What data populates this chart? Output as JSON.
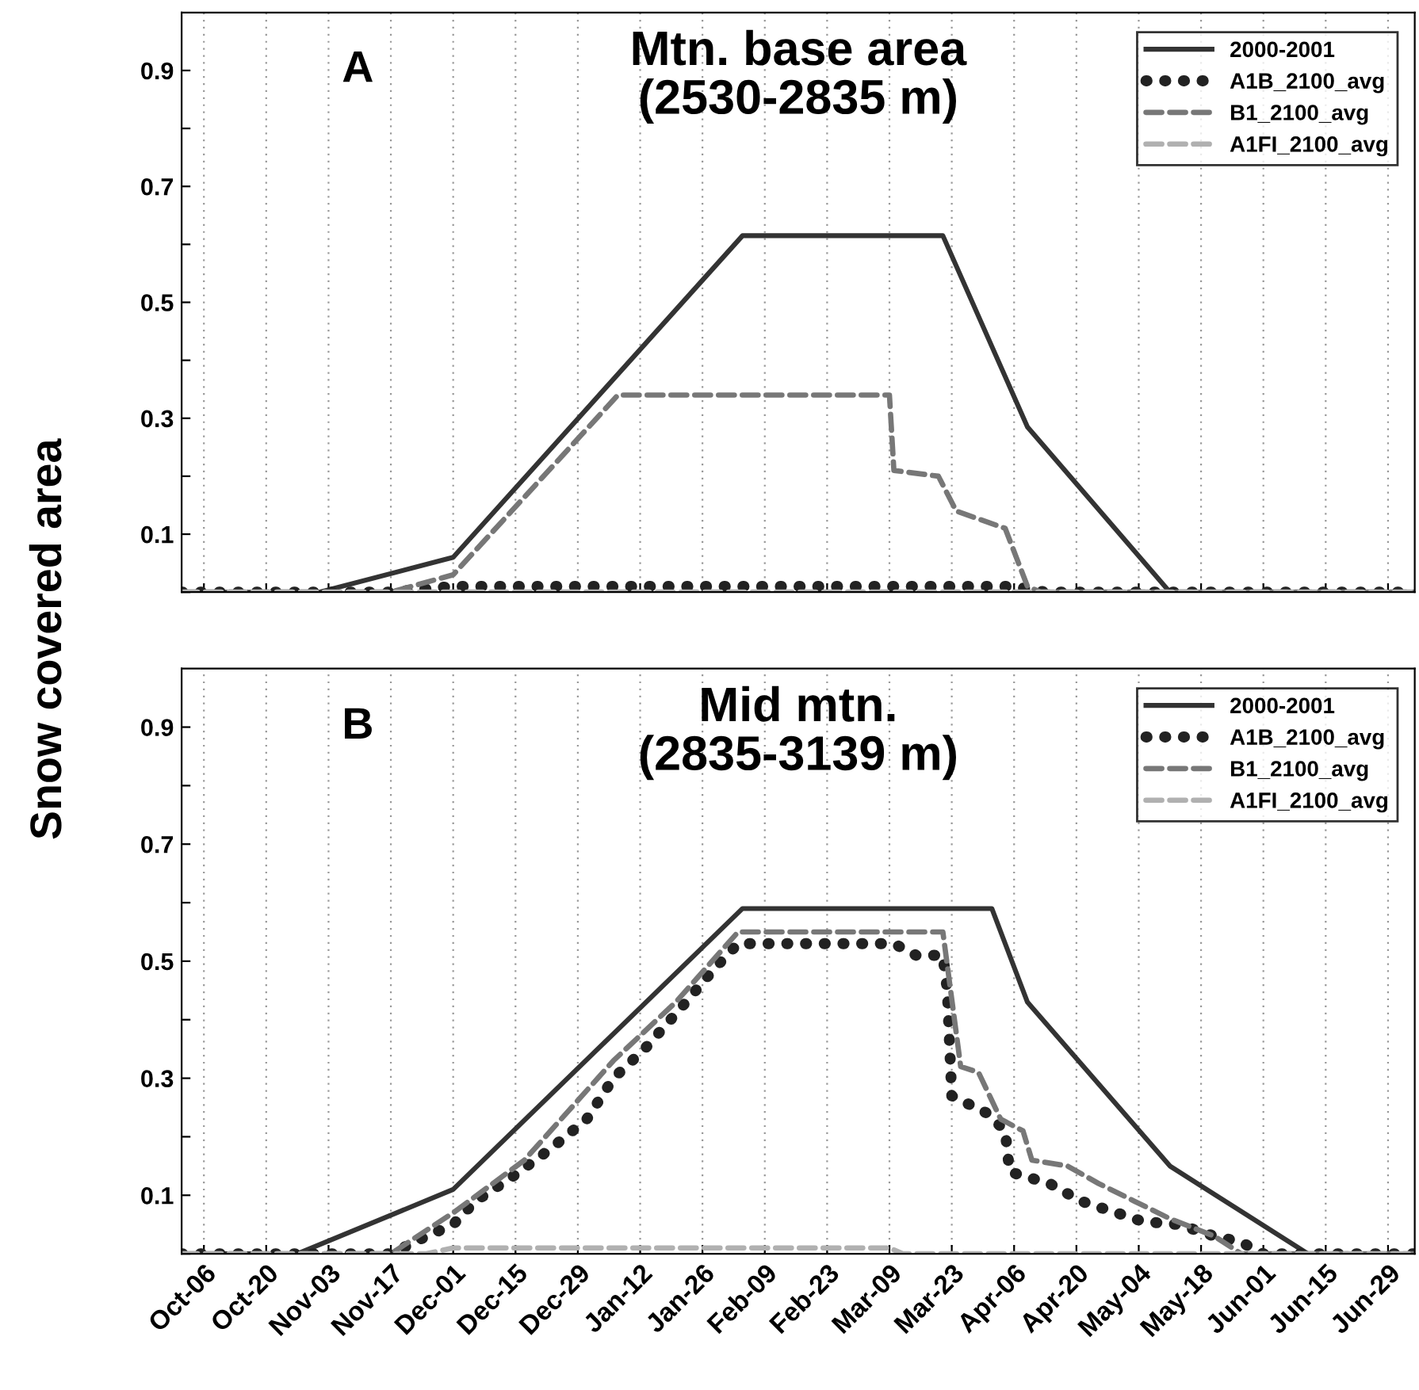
{
  "chart_data": [
    {
      "type": "line",
      "title": "Mtn. base area\n(2530-2835 m)",
      "ylabel": "Snow covered area",
      "annotations": [
        "A"
      ],
      "grid": "x",
      "legend": "top right",
      "tick_labels": "y",
      "xlim": [
        "2000-10-01",
        "2001-07-05"
      ],
      "xticks": [
        {
          "value": "2000-10-06",
          "label": null
        },
        {
          "value": "2000-10-20",
          "label": null
        },
        {
          "value": "2000-11-03",
          "label": null
        },
        {
          "value": "2000-11-17",
          "label": null
        },
        {
          "value": "2000-12-01",
          "label": null
        },
        {
          "value": "2000-12-15",
          "label": null
        },
        {
          "value": "2000-12-29",
          "label": null
        },
        {
          "value": "2001-01-12",
          "label": null
        },
        {
          "value": "2001-01-26",
          "label": null
        },
        {
          "value": "2001-02-09",
          "label": null
        },
        {
          "value": "2001-02-23",
          "label": null
        },
        {
          "value": "2001-03-09",
          "label": null
        },
        {
          "value": "2001-03-23",
          "label": null
        },
        {
          "value": "2001-04-06",
          "label": null
        },
        {
          "value": "2001-04-20",
          "label": null
        },
        {
          "value": "2001-05-04",
          "label": null
        },
        {
          "value": "2001-05-18",
          "label": null
        },
        {
          "value": "2001-06-01",
          "label": null
        },
        {
          "value": "2001-06-15",
          "label": null
        },
        {
          "value": "2001-06-29",
          "label": null
        }
      ],
      "ylim": [
        0,
        1
      ],
      "yticks": [
        {
          "value": 0,
          "label": null
        },
        0.1,
        {
          "value": 0.2,
          "label": null
        },
        0.3,
        {
          "value": 0.4,
          "label": null
        },
        0.5,
        {
          "value": 0.6,
          "label": null
        },
        0.7,
        {
          "value": 0.8,
          "label": null
        },
        0.9
      ],
      "series": [
        {
          "name": "2000-2001",
          "color": "#333333",
          "line_style": "solid",
          "x": [
            "2000-10-01",
            "2000-11-01",
            "2000-12-01",
            "2001-02-04",
            "2001-03-21",
            "2001-04-09",
            "2001-05-11",
            "2001-07-05"
          ],
          "values": [
            0,
            0,
            0.06,
            0.615,
            0.615,
            0.285,
            0,
            0
          ]
        },
        {
          "name": "A1B_2100_avg",
          "color": "#222222",
          "line_style": "dotted",
          "x": [
            "2000-10-01",
            "2000-11-17",
            "2000-12-01",
            "2001-04-06",
            "2001-04-13",
            "2001-07-05"
          ],
          "values": [
            0,
            0,
            0.01,
            0.01,
            0,
            0
          ]
        },
        {
          "name": "B1_2100_avg",
          "color": "#777777",
          "line_style": "dashed",
          "x": [
            "2000-10-01",
            "2000-11-17",
            "2000-12-01",
            "2001-01-07",
            "2001-03-09",
            "2001-03-10",
            "2001-03-20",
            "2001-03-24",
            "2001-04-04",
            "2001-04-07",
            "2001-04-09",
            "2001-04-12",
            "2001-07-05"
          ],
          "values": [
            0,
            0,
            0.03,
            0.34,
            0.34,
            0.21,
            0.2,
            0.14,
            0.11,
            0.05,
            0.01,
            0,
            0
          ]
        },
        {
          "name": "A1FI_2100_avg",
          "color": "#b0b0b0",
          "line_style": "dashed",
          "x": [
            "2000-10-01",
            "2001-07-05"
          ],
          "values": [
            0,
            0
          ]
        }
      ]
    },
    {
      "type": "line",
      "title": "Mid mtn.\n(2835-3139 m)",
      "annotations": [
        "B"
      ],
      "grid": "x",
      "legend": "top right",
      "xlim": [
        "2000-10-01",
        "2001-07-05"
      ],
      "xticks": [
        {
          "value": "2000-10-06",
          "label": "Oct-06"
        },
        {
          "value": "2000-10-20",
          "label": "Oct-20"
        },
        {
          "value": "2000-11-03",
          "label": "Nov-03"
        },
        {
          "value": "2000-11-17",
          "label": "Nov-17"
        },
        {
          "value": "2000-12-01",
          "label": "Dec-01"
        },
        {
          "value": "2000-12-15",
          "label": "Dec-15"
        },
        {
          "value": "2000-12-29",
          "label": "Dec-29"
        },
        {
          "value": "2001-01-12",
          "label": "Jan-12"
        },
        {
          "value": "2001-01-26",
          "label": "Jan-26"
        },
        {
          "value": "2001-02-09",
          "label": "Feb-09"
        },
        {
          "value": "2001-02-23",
          "label": "Feb-23"
        },
        {
          "value": "2001-03-09",
          "label": "Mar-09"
        },
        {
          "value": "2001-03-23",
          "label": "Mar-23"
        },
        {
          "value": "2001-04-06",
          "label": "Apr-06"
        },
        {
          "value": "2001-04-20",
          "label": "Apr-20"
        },
        {
          "value": "2001-05-04",
          "label": "May-04"
        },
        {
          "value": "2001-05-18",
          "label": "May-18"
        },
        {
          "value": "2001-06-01",
          "label": "Jun-01"
        },
        {
          "value": "2001-06-15",
          "label": "Jun-15"
        },
        {
          "value": "2001-06-29",
          "label": "Jun-29"
        }
      ],
      "ylim": [
        0,
        1
      ],
      "yticks": [
        {
          "value": 0,
          "label": null
        },
        0.1,
        {
          "value": 0.2,
          "label": null
        },
        0.3,
        {
          "value": 0.4,
          "label": null
        },
        0.5,
        {
          "value": 0.6,
          "label": null
        },
        0.7,
        {
          "value": 0.8,
          "label": null
        },
        0.9
      ],
      "series": [
        {
          "name": "2000-2001",
          "color": "#333333",
          "line_style": "solid",
          "x": [
            "2000-10-01",
            "2000-10-27",
            "2000-12-01",
            "2001-02-04",
            "2001-04-01",
            "2001-04-09",
            "2001-05-11",
            "2001-06-11",
            "2001-07-05"
          ],
          "values": [
            0,
            0,
            0.11,
            0.59,
            0.59,
            0.43,
            0.15,
            0,
            0
          ]
        },
        {
          "name": "A1B_2100_avg",
          "color": "#222222",
          "line_style": "dotted",
          "x": [
            "2000-10-01",
            "2000-11-17",
            "2000-11-25",
            "2000-12-01",
            "2000-12-06",
            "2000-12-14",
            "2000-12-23",
            "2000-12-31",
            "2001-01-06",
            "2001-01-13",
            "2001-01-20",
            "2001-01-29",
            "2001-02-03",
            "2001-03-10",
            "2001-03-15",
            "2001-03-21",
            "2001-03-22",
            "2001-03-23",
            "2001-03-31",
            "2001-04-04",
            "2001-04-05",
            "2001-04-14",
            "2001-04-21",
            "2001-04-29",
            "2001-05-05",
            "2001-05-13",
            "2001-05-21",
            "2001-05-27",
            "2001-06-01",
            "2001-07-05"
          ],
          "values": [
            0,
            0,
            0.03,
            0.05,
            0.09,
            0.13,
            0.18,
            0.23,
            0.3,
            0.35,
            0.41,
            0.49,
            0.53,
            0.53,
            0.51,
            0.51,
            0.45,
            0.27,
            0.24,
            0.21,
            0.14,
            0.12,
            0.09,
            0.07,
            0.055,
            0.05,
            0.03,
            0.02,
            0,
            0
          ]
        },
        {
          "name": "B1_2100_avg",
          "color": "#777777",
          "line_style": "dashed",
          "x": [
            "2000-10-01",
            "2000-11-17",
            "2000-12-01",
            "2000-12-17",
            "2001-01-06",
            "2001-01-20",
            "2001-02-03",
            "2001-03-21",
            "2001-03-25",
            "2001-03-29",
            "2001-04-03",
            "2001-04-08",
            "2001-04-10",
            "2001-04-18",
            "2001-04-25",
            "2001-05-03",
            "2001-05-11",
            "2001-05-21",
            "2001-05-27",
            "2001-07-05"
          ],
          "values": [
            0,
            0,
            0.07,
            0.16,
            0.33,
            0.43,
            0.55,
            0.55,
            0.32,
            0.31,
            0.23,
            0.21,
            0.16,
            0.15,
            0.12,
            0.09,
            0.06,
            0.03,
            0,
            0
          ]
        },
        {
          "name": "A1FI_2100_avg",
          "color": "#b0b0b0",
          "line_style": "dashed",
          "x": [
            "2000-10-01",
            "2000-11-25",
            "2000-12-01",
            "2001-03-09",
            "2001-03-12",
            "2001-07-05"
          ],
          "values": [
            0,
            0,
            0.01,
            0.01,
            0,
            0
          ]
        }
      ]
    }
  ]
}
